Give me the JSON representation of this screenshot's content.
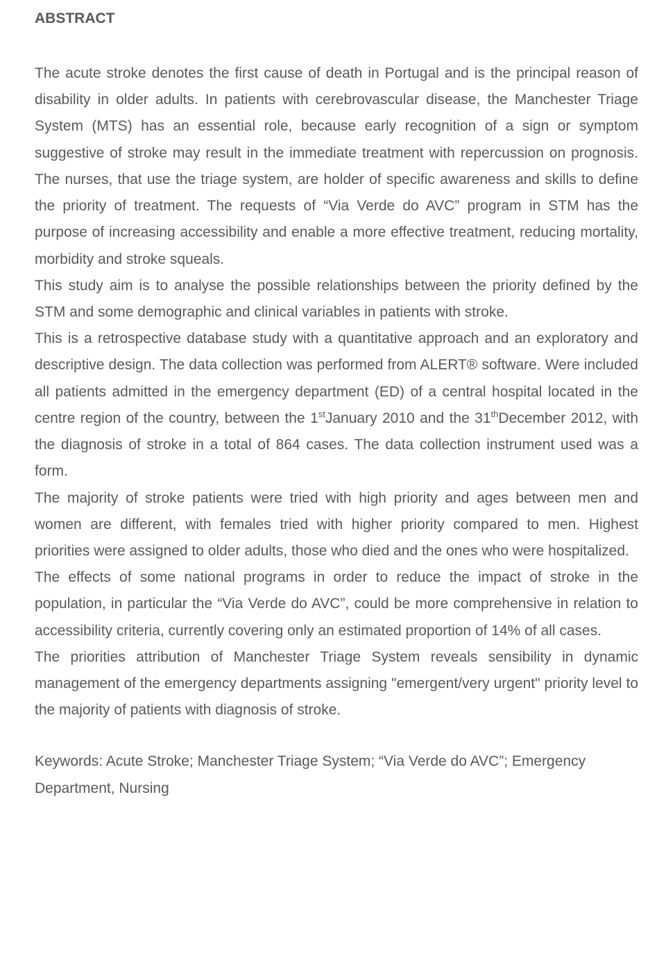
{
  "heading": "ABSTRACT",
  "body": {
    "p1_a": "The acute stroke denotes the first cause of death in Portugal and is the principal reason of disability in older adults. In patients with cerebrovascular disease, the Manchester Triage System (MTS) has an essential role, because early recognition of a sign or symptom suggestive of stroke may result in the immediate treatment with repercussion on prognosis. The nurses, that use the triage system, are holder of specific awareness and skills to define the priority of treatment. The requests of “Via Verde do AVC” program in STM has the purpose of increasing accessibility and enable a more effective treatment, reducing mortality, morbidity and stroke squeals.",
    "p2": "This study aim is to analyse the possible relationships between the priority defined by the STM and some demographic and clinical variables in patients with stroke.",
    "p3_a": "This is a retrospective database study with a quantitative approach and an exploratory and descriptive design. The data collection was performed from ALERT® software. Were included all patients admitted in the emergency department (ED) of a central hospital located in the centre region of the country, between the 1",
    "p3_sup1": "st",
    "p3_b": "January 2010 and the 31",
    "p3_sup2": "th",
    "p3_c": "December 2012, with the diagnosis of stroke in a total of 864 cases. The data collection instrument used was a form.",
    "p4": "The majority of stroke patients were tried with high priority and ages between men and women are different, with females tried with higher priority compared to men. Highest priorities were assigned to older adults, those who died and the ones who were hospitalized.",
    "p5": "The effects of some national programs in order to reduce the impact of stroke in the population, in particular the “Via Verde do AVC”, could be more comprehensive in relation to accessibility criteria, currently covering only an estimated proportion of 14% of all cases.",
    "p6": "The priorities attribution of Manchester Triage System reveals sensibility in dynamic management of the emergency departments assigning \"emergent/very urgent\" priority level to the majority of patients with diagnosis of stroke."
  },
  "keywords": "Keywords: Acute Stroke; Manchester Triage System; “Via Verde do AVC”; Emergency Department, Nursing"
}
